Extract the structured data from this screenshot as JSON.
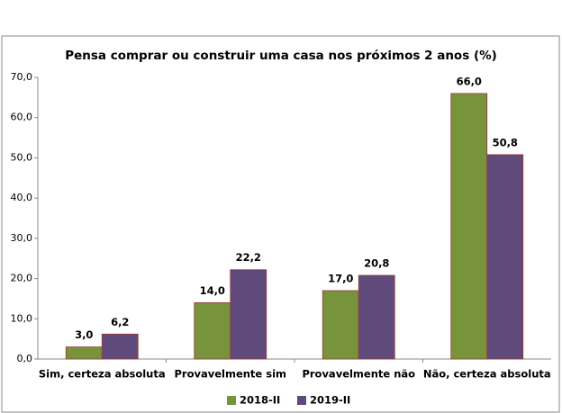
{
  "chart_data": {
    "type": "bar",
    "title": "Pensa comprar ou construir uma casa nos próximos 2 anos (%)",
    "categories": [
      "Sim, certeza absoluta",
      "Provavelmente sim",
      "Provavelmente não",
      "Não, certeza absoluta"
    ],
    "series": [
      {
        "name": "2018-II",
        "color": "#77933c",
        "values": [
          3,
          14,
          17,
          66
        ],
        "value_labels": [
          "3,0",
          "14,0",
          "17,0",
          "66,0"
        ]
      },
      {
        "name": "2019-II",
        "color": "#604a7b",
        "values": [
          6.2,
          22.2,
          20.8,
          50.8
        ],
        "value_labels": [
          "6,2",
          "22,2",
          "20,8",
          "50,8"
        ]
      }
    ],
    "ylim": [
      0,
      70
    ],
    "yticks": [
      {
        "value": 0,
        "label": "0,0"
      },
      {
        "value": 10,
        "label": "10,0"
      },
      {
        "value": 20,
        "label": "20,0"
      },
      {
        "value": 30,
        "label": "30,0"
      },
      {
        "value": 40,
        "label": "40,0"
      },
      {
        "value": 50,
        "label": "50,0"
      },
      {
        "value": 60,
        "label": "60,0"
      },
      {
        "value": 70,
        "label": "70,0"
      }
    ],
    "grid": false,
    "legend": "bottom"
  }
}
